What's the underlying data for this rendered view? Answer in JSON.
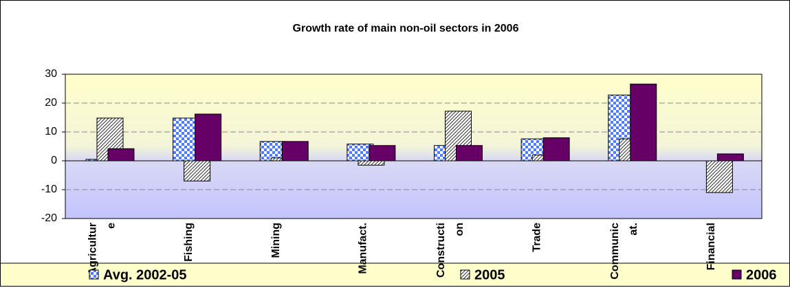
{
  "chart_data": {
    "type": "bar",
    "title": "Growth rate of main non-oil sectors in 2006",
    "categories": [
      "Agricultur e",
      "Fishing",
      "Mining",
      "Manufact.",
      "Constructi on",
      "Trade",
      "Communic at.",
      "Financial"
    ],
    "series": [
      {
        "name": "Avg. 2002-05",
        "color": "#4d7cff",
        "pattern": "checker",
        "values": [
          0.5,
          14.8,
          6.7,
          5.8,
          5.3,
          7.6,
          22.8,
          null
        ]
      },
      {
        "name": "2005",
        "color": "#333333",
        "pattern": "hatch",
        "values": [
          14.8,
          -7,
          1,
          -1.5,
          17.2,
          2,
          7.6,
          -11
        ]
      },
      {
        "name": "2006",
        "color": "#660066",
        "pattern": "solid",
        "values": [
          4.2,
          16.2,
          6.7,
          5.3,
          5.3,
          8,
          26.6,
          2.4
        ]
      }
    ],
    "ylim": [
      -20,
      30
    ],
    "yticks": [
      -20,
      -10,
      0,
      10,
      20,
      30
    ],
    "grid": true,
    "legend": "bottom"
  }
}
